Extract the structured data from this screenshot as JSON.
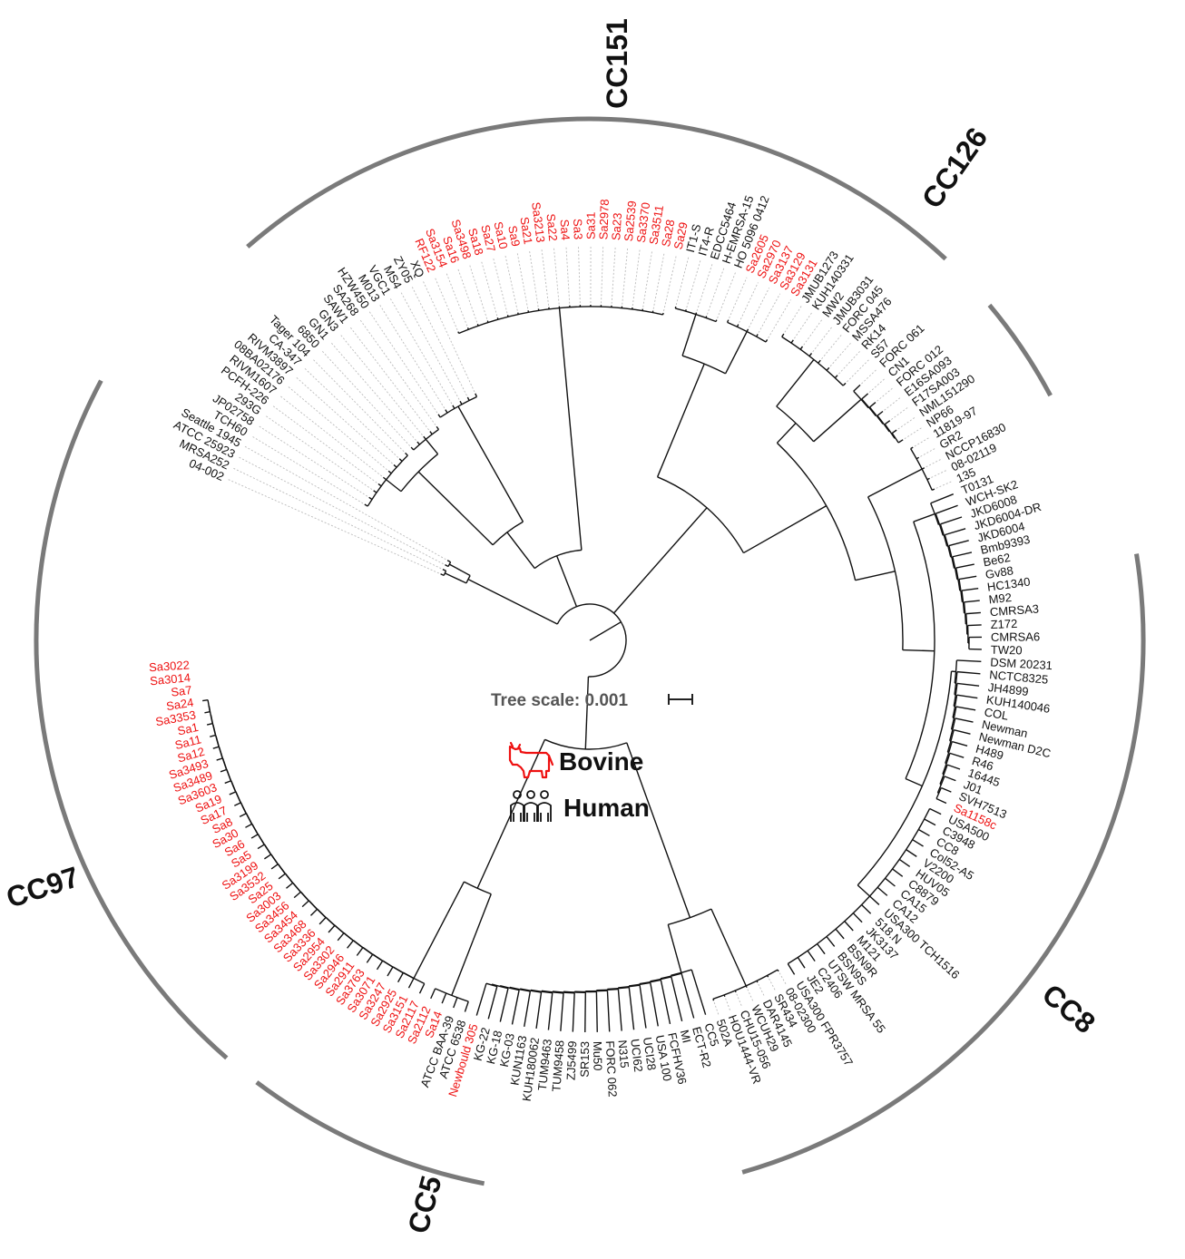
{
  "tree_scale": {
    "label": "Tree scale: 0.001"
  },
  "legend": {
    "items": [
      {
        "label": "Bovine",
        "icon": "cow-icon",
        "color": "#ee1111"
      },
      {
        "label": "Human",
        "icon": "people-icon",
        "color": "#111111"
      }
    ]
  },
  "colors": {
    "bovine": "#ee1111",
    "human": "#111111",
    "clade_arc": "#7a7a7a",
    "branch": "#111111",
    "guide": "#bbbbbb"
  },
  "clades": [
    {
      "label": "CC151"
    },
    {
      "label": "CC126"
    },
    {
      "label": "CC8"
    },
    {
      "label": "CC5"
    },
    {
      "label": "CC97"
    }
  ],
  "leaves": [
    {
      "name": "04-002",
      "host": "human"
    },
    {
      "name": "MRSA252",
      "host": "human"
    },
    {
      "name": "ATCC 25923",
      "host": "human"
    },
    {
      "name": "Seattle 1945",
      "host": "human"
    },
    {
      "name": "TCH60",
      "host": "human"
    },
    {
      "name": "JP02758",
      "host": "human"
    },
    {
      "name": "293G",
      "host": "human"
    },
    {
      "name": "PCFH-226",
      "host": "human"
    },
    {
      "name": "RIVM1607",
      "host": "human"
    },
    {
      "name": "08BA02176",
      "host": "human"
    },
    {
      "name": "RIVM3897",
      "host": "human"
    },
    {
      "name": "CA-347",
      "host": "human"
    },
    {
      "name": "Tager 104",
      "host": "human"
    },
    {
      "name": "6850",
      "host": "human"
    },
    {
      "name": "GN1",
      "host": "human"
    },
    {
      "name": "GN3",
      "host": "human"
    },
    {
      "name": "SAW1",
      "host": "human"
    },
    {
      "name": "SA268",
      "host": "human"
    },
    {
      "name": "HZW450",
      "host": "human"
    },
    {
      "name": "M013",
      "host": "human"
    },
    {
      "name": "VGC1",
      "host": "human"
    },
    {
      "name": "MS4",
      "host": "human"
    },
    {
      "name": "ZY05",
      "host": "human"
    },
    {
      "name": "XQ",
      "host": "human"
    },
    {
      "name": "RF122",
      "host": "bovine"
    },
    {
      "name": "Sa3154",
      "host": "bovine"
    },
    {
      "name": "Sa16",
      "host": "bovine"
    },
    {
      "name": "Sa3498",
      "host": "bovine"
    },
    {
      "name": "Sa18",
      "host": "bovine"
    },
    {
      "name": "Sa27",
      "host": "bovine"
    },
    {
      "name": "Sa10",
      "host": "bovine"
    },
    {
      "name": "Sa9",
      "host": "bovine"
    },
    {
      "name": "Sa21",
      "host": "bovine"
    },
    {
      "name": "Sa3213",
      "host": "bovine"
    },
    {
      "name": "Sa22",
      "host": "bovine"
    },
    {
      "name": "Sa4",
      "host": "bovine"
    },
    {
      "name": "Sa3",
      "host": "bovine"
    },
    {
      "name": "Sa31",
      "host": "bovine"
    },
    {
      "name": "Sa2978",
      "host": "bovine"
    },
    {
      "name": "Sa23",
      "host": "bovine"
    },
    {
      "name": "Sa2539",
      "host": "bovine"
    },
    {
      "name": "Sa3370",
      "host": "bovine"
    },
    {
      "name": "Sa3511",
      "host": "bovine"
    },
    {
      "name": "Sa28",
      "host": "bovine"
    },
    {
      "name": "Sa29",
      "host": "bovine"
    },
    {
      "name": "IT1-S",
      "host": "human"
    },
    {
      "name": "IT4-R",
      "host": "human"
    },
    {
      "name": "EDCC5464",
      "host": "human"
    },
    {
      "name": "H-EMRSA-15",
      "host": "human"
    },
    {
      "name": "HO 5096 0412",
      "host": "human"
    },
    {
      "name": "Sa2605",
      "host": "bovine"
    },
    {
      "name": "Sa2970",
      "host": "bovine"
    },
    {
      "name": "Sa3137",
      "host": "bovine"
    },
    {
      "name": "Sa3129",
      "host": "bovine"
    },
    {
      "name": "Sa3131",
      "host": "bovine"
    },
    {
      "name": "JMUB1273",
      "host": "human"
    },
    {
      "name": "KUH140331",
      "host": "human"
    },
    {
      "name": "MW2",
      "host": "human"
    },
    {
      "name": "JMUB3031",
      "host": "human"
    },
    {
      "name": "FORC 045",
      "host": "human"
    },
    {
      "name": "MSSA476",
      "host": "human"
    },
    {
      "name": "RK14",
      "host": "human"
    },
    {
      "name": "S57",
      "host": "human"
    },
    {
      "name": "FORC 061",
      "host": "human"
    },
    {
      "name": "CN1",
      "host": "human"
    },
    {
      "name": "FORC 012",
      "host": "human"
    },
    {
      "name": "E16SA093",
      "host": "human"
    },
    {
      "name": "F17SA003",
      "host": "human"
    },
    {
      "name": "NML151290",
      "host": "human"
    },
    {
      "name": "NP66",
      "host": "human"
    },
    {
      "name": "11819-97",
      "host": "human"
    },
    {
      "name": "GR2",
      "host": "human"
    },
    {
      "name": "NCCP16830",
      "host": "human"
    },
    {
      "name": "08-02119",
      "host": "human"
    },
    {
      "name": "135",
      "host": "human"
    },
    {
      "name": "T0131",
      "host": "human"
    },
    {
      "name": "WCH-SK2",
      "host": "human"
    },
    {
      "name": "JKD6008",
      "host": "human"
    },
    {
      "name": "JKD6004-DR",
      "host": "human"
    },
    {
      "name": "JKD6004",
      "host": "human"
    },
    {
      "name": "Bmb9393",
      "host": "human"
    },
    {
      "name": "Be62",
      "host": "human"
    },
    {
      "name": "Gv88",
      "host": "human"
    },
    {
      "name": "HC1340",
      "host": "human"
    },
    {
      "name": "M92",
      "host": "human"
    },
    {
      "name": "CMRSA3",
      "host": "human"
    },
    {
      "name": "Z172",
      "host": "human"
    },
    {
      "name": "CMRSA6",
      "host": "human"
    },
    {
      "name": "TW20",
      "host": "human"
    },
    {
      "name": "DSM 20231",
      "host": "human"
    },
    {
      "name": "NCTC8325",
      "host": "human"
    },
    {
      "name": "JH4899",
      "host": "human"
    },
    {
      "name": "KUH140046",
      "host": "human"
    },
    {
      "name": "COL",
      "host": "human"
    },
    {
      "name": "Newman",
      "host": "human"
    },
    {
      "name": "Newman D2C",
      "host": "human"
    },
    {
      "name": "H489",
      "host": "human"
    },
    {
      "name": "R46",
      "host": "human"
    },
    {
      "name": "16445",
      "host": "human"
    },
    {
      "name": "J01",
      "host": "human"
    },
    {
      "name": "SVH7513",
      "host": "human"
    },
    {
      "name": "Sa1158c",
      "host": "bovine"
    },
    {
      "name": "USA500",
      "host": "human"
    },
    {
      "name": "C3948",
      "host": "human"
    },
    {
      "name": "CC8",
      "host": "human"
    },
    {
      "name": "Col52-A5",
      "host": "human"
    },
    {
      "name": "V2200",
      "host": "human"
    },
    {
      "name": "HUV05",
      "host": "human"
    },
    {
      "name": "C8879",
      "host": "human"
    },
    {
      "name": "CA15",
      "host": "human"
    },
    {
      "name": "CA12",
      "host": "human"
    },
    {
      "name": "USA300 TCH1516",
      "host": "human"
    },
    {
      "name": "518.N",
      "host": "human"
    },
    {
      "name": "JK3137",
      "host": "human"
    },
    {
      "name": "M121",
      "host": "human"
    },
    {
      "name": "BSN9R",
      "host": "human"
    },
    {
      "name": "BSN9S",
      "host": "human"
    },
    {
      "name": "UTSW MRSA 55",
      "host": "human"
    },
    {
      "name": "C2406",
      "host": "human"
    },
    {
      "name": "JE2",
      "host": "human"
    },
    {
      "name": "USA300 FPR3757",
      "host": "human"
    },
    {
      "name": "08-02300",
      "host": "human"
    },
    {
      "name": "SR434",
      "host": "human"
    },
    {
      "name": "DAR4145",
      "host": "human"
    },
    {
      "name": "WCUH29",
      "host": "human"
    },
    {
      "name": "CHU15-056",
      "host": "human"
    },
    {
      "name": "HOU1444-VR",
      "host": "human"
    },
    {
      "name": "502A",
      "host": "human"
    },
    {
      "name": "CC5",
      "host": "human"
    },
    {
      "name": "ECT-R2",
      "host": "human"
    },
    {
      "name": "MI",
      "host": "human"
    },
    {
      "name": "FCFHV36",
      "host": "human"
    },
    {
      "name": "USA 100",
      "host": "human"
    },
    {
      "name": "UCI28",
      "host": "human"
    },
    {
      "name": "UCI62",
      "host": "human"
    },
    {
      "name": "N315",
      "host": "human"
    },
    {
      "name": "FORC 062",
      "host": "human"
    },
    {
      "name": "Mu50",
      "host": "human"
    },
    {
      "name": "SR153",
      "host": "human"
    },
    {
      "name": "ZJ5499",
      "host": "human"
    },
    {
      "name": "TUM9458",
      "host": "human"
    },
    {
      "name": "TUM9463",
      "host": "human"
    },
    {
      "name": "KUH180062",
      "host": "human"
    },
    {
      "name": "KUN1163",
      "host": "human"
    },
    {
      "name": "KG-03",
      "host": "human"
    },
    {
      "name": "KG-18",
      "host": "human"
    },
    {
      "name": "KG-22",
      "host": "human"
    },
    {
      "name": "Newbould 305",
      "host": "bovine"
    },
    {
      "name": "ATCC 6538",
      "host": "human"
    },
    {
      "name": "ATCC BAA-39",
      "host": "human"
    },
    {
      "name": "Sa14",
      "host": "bovine"
    },
    {
      "name": "Sa2112",
      "host": "bovine"
    },
    {
      "name": "Sa2117",
      "host": "bovine"
    },
    {
      "name": "Sa3151",
      "host": "bovine"
    },
    {
      "name": "Sa2925",
      "host": "bovine"
    },
    {
      "name": "Sa3247",
      "host": "bovine"
    },
    {
      "name": "Sa3071",
      "host": "bovine"
    },
    {
      "name": "Sa3763",
      "host": "bovine"
    },
    {
      "name": "Sa2911",
      "host": "bovine"
    },
    {
      "name": "Sa2946",
      "host": "bovine"
    },
    {
      "name": "Sa3302",
      "host": "bovine"
    },
    {
      "name": "Sa2954",
      "host": "bovine"
    },
    {
      "name": "Sa3336",
      "host": "bovine"
    },
    {
      "name": "Sa3468",
      "host": "bovine"
    },
    {
      "name": "Sa3454",
      "host": "bovine"
    },
    {
      "name": "Sa3456",
      "host": "bovine"
    },
    {
      "name": "Sa3003",
      "host": "bovine"
    },
    {
      "name": "Sa25",
      "host": "bovine"
    },
    {
      "name": "Sa3532",
      "host": "bovine"
    },
    {
      "name": "Sa3199",
      "host": "bovine"
    },
    {
      "name": "Sa5",
      "host": "bovine"
    },
    {
      "name": "Sa6",
      "host": "bovine"
    },
    {
      "name": "Sa30",
      "host": "bovine"
    },
    {
      "name": "Sa8",
      "host": "bovine"
    },
    {
      "name": "Sa17",
      "host": "bovine"
    },
    {
      "name": "Sa19",
      "host": "bovine"
    },
    {
      "name": "Sa3603",
      "host": "bovine"
    },
    {
      "name": "Sa3489",
      "host": "bovine"
    },
    {
      "name": "Sa3493",
      "host": "bovine"
    },
    {
      "name": "Sa12",
      "host": "bovine"
    },
    {
      "name": "Sa11",
      "host": "bovine"
    },
    {
      "name": "Sa1",
      "host": "bovine"
    },
    {
      "name": "Sa3353",
      "host": "bovine"
    },
    {
      "name": "Sa24",
      "host": "bovine"
    },
    {
      "name": "Sa7",
      "host": "bovine"
    },
    {
      "name": "Sa3014",
      "host": "bovine"
    },
    {
      "name": "Sa3022",
      "host": "bovine"
    }
  ]
}
